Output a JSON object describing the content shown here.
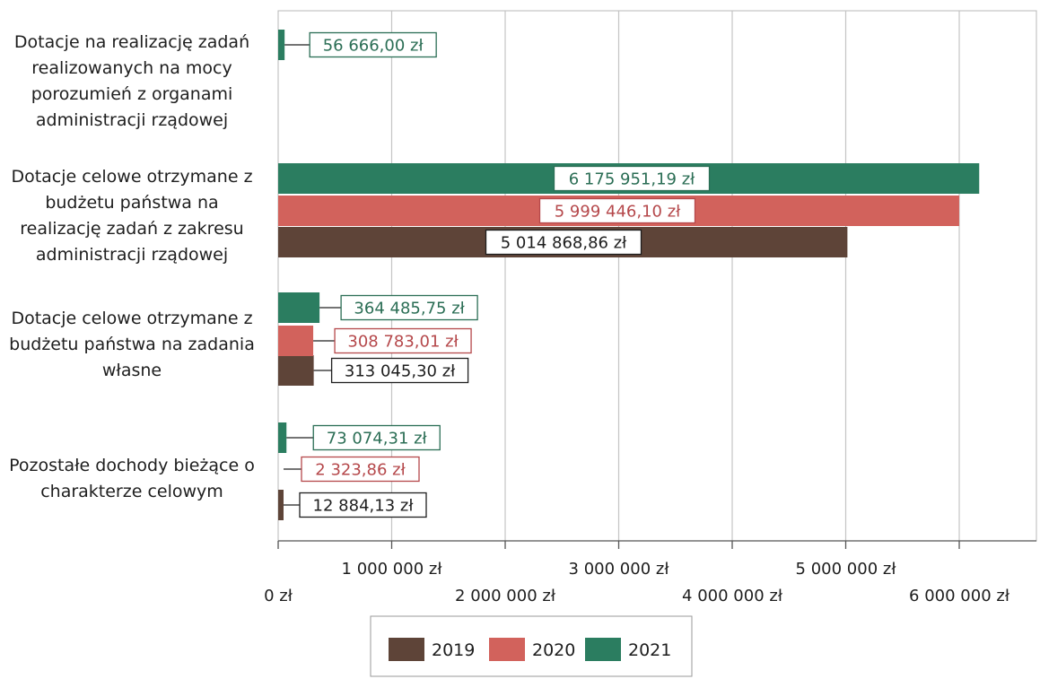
{
  "chart_data": {
    "type": "bar",
    "orientation": "horizontal",
    "title": "",
    "xlabel": "",
    "ylabel": "",
    "xlim": [
      0,
      6700000
    ],
    "grid": true,
    "legend_position": "bottom",
    "categories": [
      [
        "Dotacje na realizację zadań",
        "realizowanych na mocy",
        "porozumień z organami",
        "administracji rządowej"
      ],
      [
        "Dotacje celowe otrzymane z",
        "budżetu państwa na",
        "realizację zadań z zakresu",
        "administracji rządowej"
      ],
      [
        "Dotacje celowe otrzymane z",
        "budżetu państwa na zadania",
        "własne"
      ],
      [
        "Pozostałe dochody bieżące o",
        "charakterze celowym"
      ]
    ],
    "series": [
      {
        "name": "2019",
        "color": "#5e4438",
        "label_color": "#1e1e1e",
        "values": [
          null,
          5014868.86,
          313045.3,
          12884.13
        ],
        "labels": [
          null,
          "5 014 868,86 zł",
          "313 045,30 zł",
          "12 884,13 zł"
        ]
      },
      {
        "name": "2020",
        "color": "#d2625c",
        "label_color": "#b5484b",
        "values": [
          null,
          5999446.1,
          308783.01,
          2323.86
        ],
        "labels": [
          null,
          "5 999 446,10 zł",
          "308 783,01 zł",
          "2 323,86 zł"
        ]
      },
      {
        "name": "2021",
        "color": "#2b7d60",
        "label_color": "#2b6e55",
        "values": [
          56666.0,
          6175951.19,
          364485.75,
          73074.31
        ],
        "labels": [
          "56 666,00 zł",
          "6 175 951,19 zł",
          "364 485,75 zł",
          "73 074,31 zł"
        ]
      }
    ],
    "ticks": [
      {
        "value": 0,
        "label": "0 zł"
      },
      {
        "value": 1000000,
        "label": "1 000 000 zł"
      },
      {
        "value": 2000000,
        "label": "2 000 000 zł"
      },
      {
        "value": 3000000,
        "label": "3 000 000 zł"
      },
      {
        "value": 4000000,
        "label": "4 000 000 zł"
      },
      {
        "value": 5000000,
        "label": "5 000 000 zł"
      },
      {
        "value": 6000000,
        "label": "6 000 000 zł"
      }
    ],
    "legend": [
      {
        "name": "2019",
        "color": "#5e4438"
      },
      {
        "name": "2020",
        "color": "#d2625c"
      },
      {
        "name": "2021",
        "color": "#2b7d60"
      }
    ]
  }
}
